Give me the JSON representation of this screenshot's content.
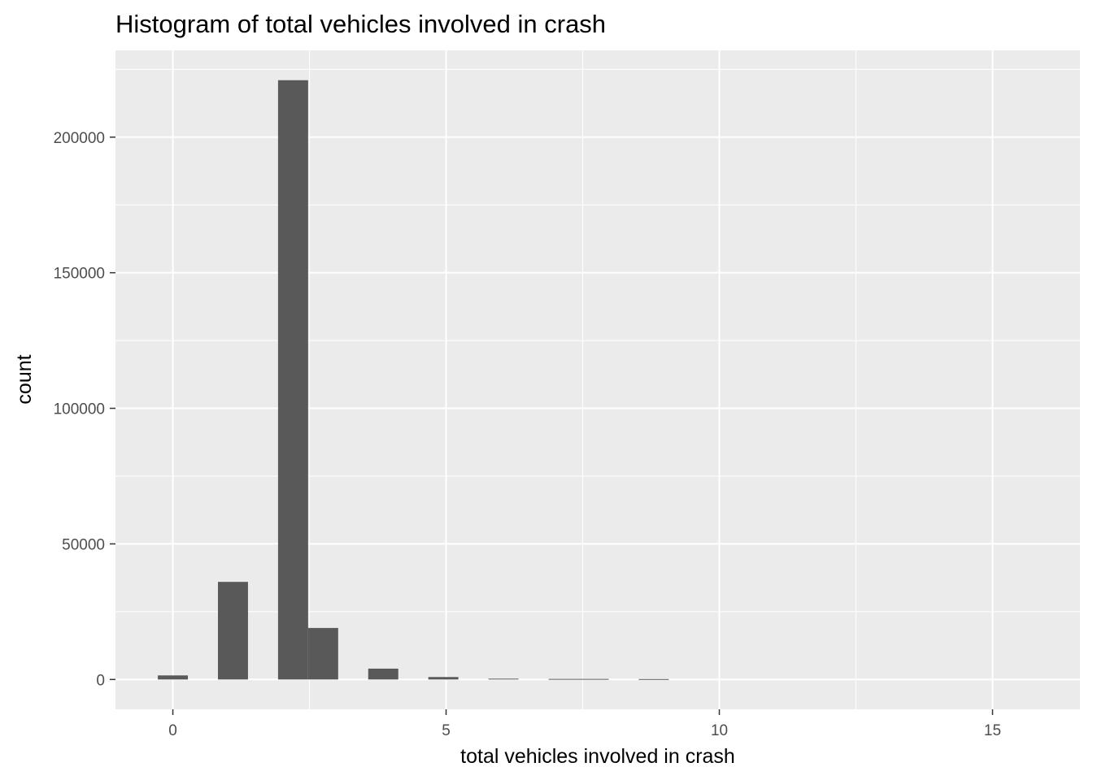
{
  "chart_data": {
    "type": "bar",
    "title": "Histogram of total vehicles involved in crash",
    "xlabel": "total vehicles involved in crash",
    "ylabel": "count",
    "xlim": [
      -1.05,
      16.6
    ],
    "ylim": [
      -11000,
      232000
    ],
    "x_ticks": [
      0,
      5,
      10,
      15
    ],
    "y_ticks": [
      0,
      50000,
      100000,
      150000,
      200000
    ],
    "x_tick_labels": [
      "0",
      "5",
      "10",
      "15"
    ],
    "y_tick_labels": [
      "0",
      "50000",
      "100000",
      "150000",
      "200000"
    ],
    "bin_width": 0.55,
    "bins": [
      {
        "x": 0.0,
        "count": 1500
      },
      {
        "x": 1.1,
        "count": 36000
      },
      {
        "x": 2.2,
        "count": 221000
      },
      {
        "x": 2.75,
        "count": 19000
      },
      {
        "x": 3.85,
        "count": 4000
      },
      {
        "x": 4.95,
        "count": 900
      },
      {
        "x": 6.05,
        "count": 300
      },
      {
        "x": 7.15,
        "count": 200
      },
      {
        "x": 7.7,
        "count": 200
      },
      {
        "x": 8.8,
        "count": 150
      }
    ],
    "grid": true,
    "colors": {
      "panel_background": "#ebebeb",
      "grid_major": "#ffffff",
      "bar_fill": "#595959"
    }
  }
}
